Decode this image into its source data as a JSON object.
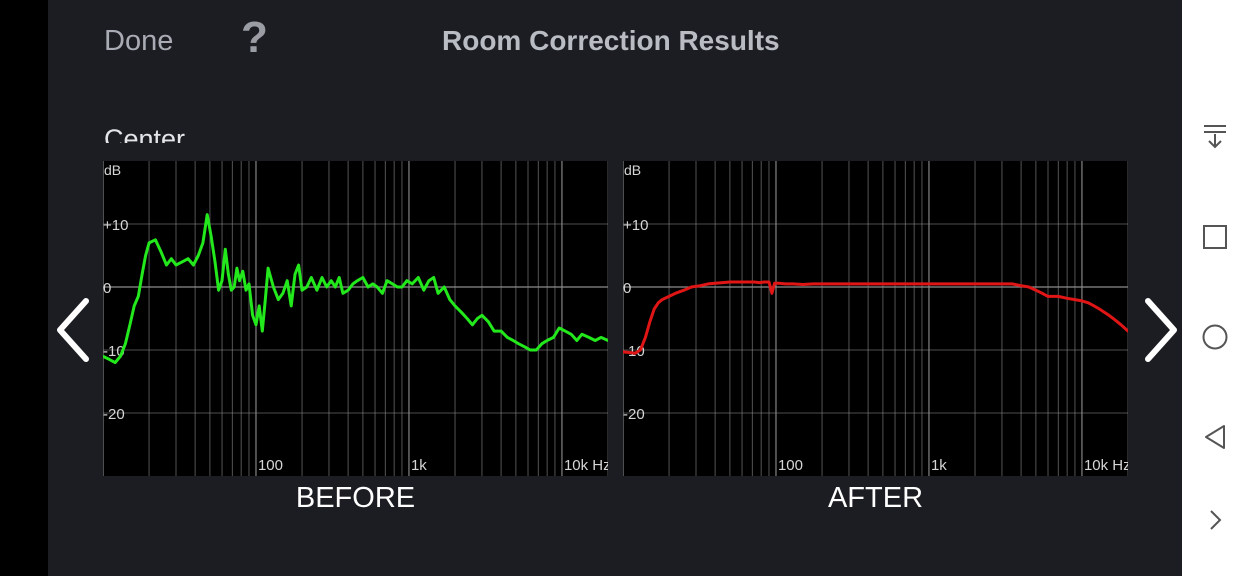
{
  "header": {
    "done_label": "Done",
    "help_label": "?",
    "title": "Room Correction Results"
  },
  "channel_label": "Center",
  "icons": {
    "help": "question-mark-icon",
    "prev": "chevron-left-icon",
    "next": "chevron-right-icon",
    "nav": [
      "notification-pull-down-icon",
      "recents-square-icon",
      "home-circle-icon",
      "back-triangle-icon",
      "chevron-right-icon"
    ]
  },
  "colors": {
    "before_line": "#22e81c",
    "after_line": "#e01515",
    "grid": "#8c8c8c",
    "axis_text": "#d6d6d6"
  },
  "chart_data": [
    {
      "type": "line",
      "title": "BEFORE",
      "ylabel": "dB",
      "xlabel": "",
      "x_scale": "log",
      "xlim": [
        10,
        20000
      ],
      "ylim": [
        -30,
        20
      ],
      "y_ticks": [
        {
          "value": 10,
          "label": "+10"
        },
        {
          "value": 0,
          "label": "0"
        },
        {
          "value": -10,
          "label": "-10"
        },
        {
          "value": -20,
          "label": "-20"
        }
      ],
      "x_ticks": [
        {
          "value": 100,
          "label": "100"
        },
        {
          "value": 1000,
          "label": "1k"
        },
        {
          "value": 10000,
          "label": "10k Hz"
        }
      ],
      "grid": true,
      "series": [
        {
          "color": "#22e81c",
          "x": [
            10,
            11,
            12,
            13,
            14,
            15,
            16,
            17,
            18,
            19,
            20,
            22,
            24,
            26,
            28,
            30,
            33,
            36,
            39,
            42,
            45,
            48,
            51,
            54,
            57,
            60,
            63,
            66,
            69,
            72,
            75,
            78,
            82,
            86,
            90,
            95,
            100,
            105,
            110,
            115,
            120,
            130,
            140,
            150,
            160,
            170,
            180,
            190,
            200,
            215,
            230,
            250,
            270,
            290,
            310,
            330,
            350,
            370,
            400,
            430,
            460,
            500,
            540,
            580,
            620,
            670,
            720,
            780,
            840,
            900,
            970,
            1050,
            1150,
            1250,
            1350,
            1450,
            1550,
            1700,
            1850,
            2000,
            2200,
            2400,
            2600,
            2800,
            3000,
            3300,
            3600,
            4000,
            4400,
            4800,
            5200,
            5700,
            6200,
            6800,
            7400,
            8000,
            8800,
            9600,
            10500,
            11500,
            12500,
            13500,
            15000,
            16500,
            18000,
            20000
          ],
          "values": [
            -11,
            -11.5,
            -12,
            -11,
            -9,
            -6,
            -3,
            -1.5,
            2,
            5,
            7,
            7.5,
            5.5,
            3.5,
            4.5,
            3.5,
            4,
            4.5,
            3.5,
            5,
            7,
            11.5,
            8,
            4,
            -0.5,
            1,
            6,
            2,
            -0.5,
            0,
            3,
            1,
            2.5,
            -0.5,
            0.5,
            -4.5,
            -6,
            -3,
            -7,
            -2,
            3,
            0,
            -2,
            -1,
            1,
            -3,
            2,
            3.5,
            -0.5,
            0,
            1.5,
            -0.5,
            1.5,
            0,
            1,
            0,
            1.5,
            -1,
            -0.5,
            0.5,
            1,
            1.5,
            0,
            0.5,
            0,
            -1,
            1,
            0.5,
            0,
            0,
            1,
            0.5,
            1.5,
            -0.5,
            1,
            1.5,
            -1,
            0,
            -2,
            -3,
            -4,
            -5,
            -6,
            -5,
            -4.5,
            -5.5,
            -7,
            -7,
            -8,
            -8.5,
            -9,
            -9.5,
            -10,
            -10,
            -9,
            -8.5,
            -8,
            -6.5,
            -7,
            -7.5,
            -8.5,
            -7.5,
            -8,
            -8.5,
            -8,
            -8.5
          ]
        }
      ]
    },
    {
      "type": "line",
      "title": "AFTER",
      "ylabel": "dB",
      "xlabel": "",
      "x_scale": "log",
      "xlim": [
        10,
        20000
      ],
      "ylim": [
        -30,
        20
      ],
      "y_ticks": [
        {
          "value": 10,
          "label": "+10"
        },
        {
          "value": 0,
          "label": "0"
        },
        {
          "value": -10,
          "label": "-10"
        },
        {
          "value": -20,
          "label": "-20"
        }
      ],
      "x_ticks": [
        {
          "value": 100,
          "label": "100"
        },
        {
          "value": 1000,
          "label": "1k"
        },
        {
          "value": 10000,
          "label": "10k Hz"
        }
      ],
      "grid": true,
      "series": [
        {
          "color": "#e01515",
          "x": [
            10,
            11,
            12,
            13,
            14,
            15,
            16,
            17,
            18,
            20,
            22,
            25,
            28,
            32,
            36,
            40,
            45,
            50,
            55,
            60,
            66,
            72,
            78,
            84,
            90,
            94,
            98,
            105,
            115,
            130,
            150,
            175,
            200,
            250,
            300,
            350,
            400,
            500,
            600,
            700,
            800,
            1000,
            1300,
            1600,
            2000,
            2500,
            3000,
            3500,
            4000,
            4500,
            5000,
            5500,
            6000,
            7000,
            8000,
            9000,
            10000,
            11000,
            12000,
            13000,
            14000,
            15000,
            16000,
            17000,
            18000,
            19000,
            20000
          ],
          "values": [
            -10.3,
            -10.4,
            -10.5,
            -10,
            -8,
            -5.5,
            -3.5,
            -2.5,
            -2,
            -1.5,
            -1,
            -0.5,
            0,
            0.2,
            0.5,
            0.6,
            0.7,
            0.8,
            0.8,
            0.8,
            0.8,
            0.8,
            0.7,
            0.8,
            0.8,
            -1,
            0.6,
            0.6,
            0.5,
            0.5,
            0.4,
            0.5,
            0.5,
            0.5,
            0.5,
            0.5,
            0.5,
            0.5,
            0.5,
            0.5,
            0.5,
            0.5,
            0.5,
            0.5,
            0.5,
            0.5,
            0.5,
            0.5,
            0.2,
            0,
            -0.5,
            -1,
            -1.5,
            -1.5,
            -1.8,
            -2,
            -2.2,
            -2.5,
            -3,
            -3.5,
            -4,
            -4.5,
            -5,
            -5.5,
            -6,
            -6.5,
            -7
          ]
        }
      ]
    }
  ]
}
